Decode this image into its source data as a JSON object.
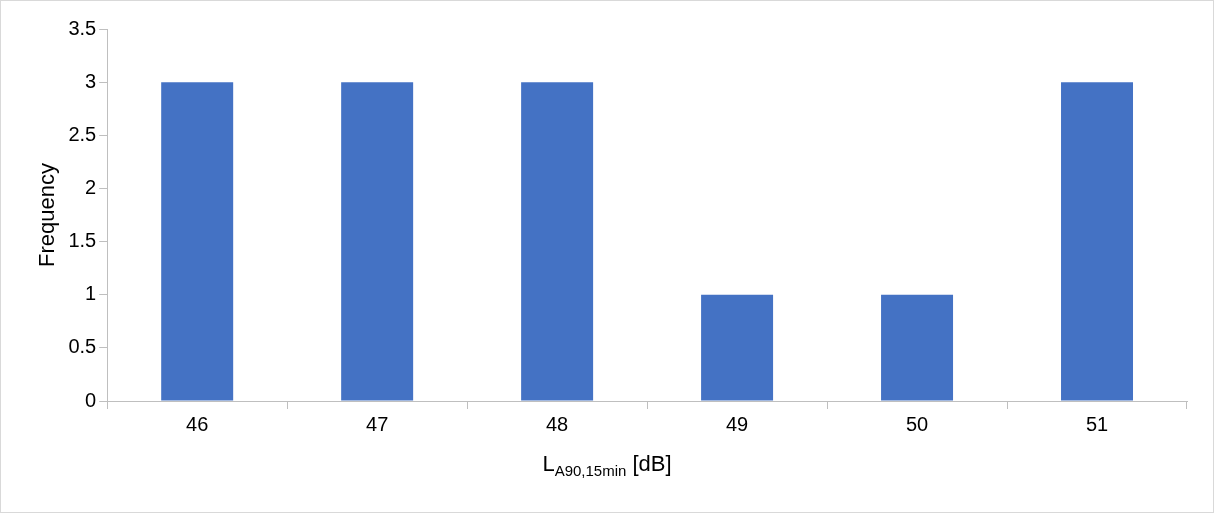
{
  "chart_data": {
    "type": "bar",
    "xlabel": "L$_{A90,15min}$ [dB]",
    "ylabel": "Frequency",
    "categories": [
      "46",
      "47",
      "48",
      "49",
      "50",
      "51"
    ],
    "values": [
      3,
      3,
      3,
      1,
      1,
      3
    ],
    "color": "#4472c4",
    "ylim": [
      0,
      3.5
    ],
    "yticks": [
      0,
      0.5,
      1,
      1.5,
      2,
      2.5,
      3,
      3.5
    ],
    "grid": false
  }
}
